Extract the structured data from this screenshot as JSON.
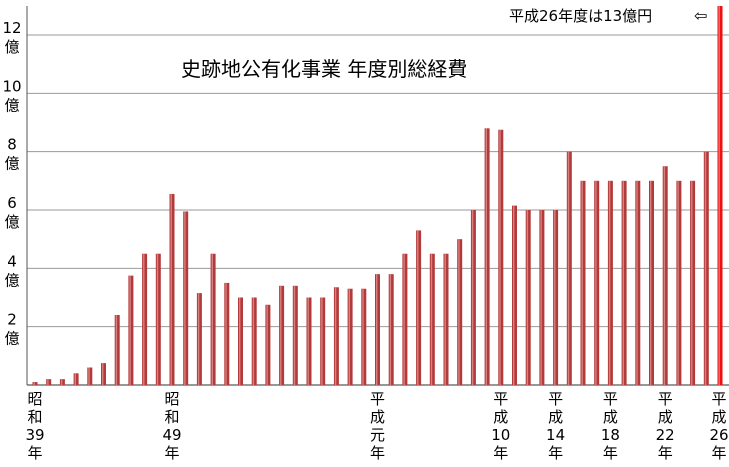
{
  "chart_data": {
    "type": "bar",
    "title": "史跡地公有化事業 年度別総経費",
    "annotation": "平成26年度は13億円",
    "annotation_arrow": "⇦",
    "y_unit": "億",
    "ylim": [
      0,
      13
    ],
    "y_ticks": [
      2,
      4,
      6,
      8,
      10,
      12
    ],
    "grid": true,
    "colors": {
      "bar": "#b23a3a",
      "highlight": "#ee1111",
      "grid": "#999999"
    },
    "categories": [
      "S39",
      "S40",
      "S41",
      "S42",
      "S43",
      "S44",
      "S45",
      "S46",
      "S47",
      "S48",
      "S49",
      "S50",
      "S51",
      "S52",
      "S53",
      "S54",
      "S55",
      "S56",
      "S57",
      "S58",
      "S59",
      "S60",
      "S61",
      "S62",
      "S63",
      "H1",
      "H2",
      "H3",
      "H4",
      "H5",
      "H6",
      "H7",
      "H8",
      "H9",
      "H10",
      "H11",
      "H12",
      "H13",
      "H14",
      "H15",
      "H16",
      "H17",
      "H18",
      "H19",
      "H20",
      "H21",
      "H22",
      "H23",
      "H24",
      "H25",
      "H26"
    ],
    "values": [
      0.1,
      0.2,
      0.2,
      0.4,
      0.6,
      0.75,
      2.4,
      3.75,
      4.5,
      4.5,
      6.55,
      5.95,
      3.15,
      4.5,
      3.5,
      3.0,
      3.0,
      2.75,
      3.4,
      3.4,
      3.0,
      3.0,
      3.35,
      3.3,
      3.3,
      3.8,
      3.8,
      4.5,
      5.3,
      4.5,
      4.5,
      5.0,
      6.0,
      8.8,
      8.75,
      6.15,
      6.0,
      6.0,
      6.0,
      8.0,
      7.0,
      7.0,
      7.0,
      7.0,
      7.0,
      7.0,
      7.5,
      7.0,
      7.0,
      8.0,
      13.0
    ],
    "x_labels": [
      {
        "index": 0,
        "text": "昭和39年"
      },
      {
        "index": 10,
        "text": "昭和49年"
      },
      {
        "index": 25,
        "text": "平成元年"
      },
      {
        "index": 34,
        "text": "平成10年"
      },
      {
        "index": 38,
        "text": "平成14年"
      },
      {
        "index": 42,
        "text": "平成18年"
      },
      {
        "index": 46,
        "text": "平成22年"
      },
      {
        "index": 50,
        "text": "平成26年"
      }
    ]
  }
}
